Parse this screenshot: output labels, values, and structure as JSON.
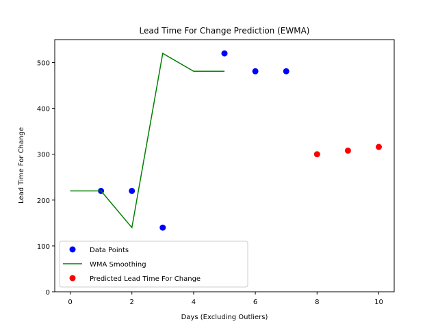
{
  "chart_data": {
    "type": "scatter",
    "title": "Lead Time For Change Prediction (EWMA)",
    "xlabel": "Days (Excluding Outliers)",
    "ylabel": "Lead Time For Change",
    "xlim": [
      -0.5,
      10.5
    ],
    "ylim": [
      0,
      550
    ],
    "xticks": [
      0,
      2,
      4,
      6,
      8,
      10
    ],
    "yticks": [
      0,
      100,
      200,
      300,
      400,
      500
    ],
    "grid": false,
    "legend_position": "lower-left",
    "series": [
      {
        "name": "Data Points",
        "kind": "scatter",
        "color": "#0000ff",
        "x": [
          1,
          2,
          3,
          5,
          6,
          7
        ],
        "y": [
          220,
          220,
          140,
          520,
          481,
          481
        ]
      },
      {
        "name": "WMA Smoothing",
        "kind": "line",
        "color": "#008000",
        "x": [
          0,
          1,
          2,
          3,
          4,
          5
        ],
        "y": [
          220,
          220,
          140,
          520,
          481,
          481
        ]
      },
      {
        "name": "Predicted Lead Time For Change",
        "kind": "scatter",
        "color": "#ff0000",
        "x": [
          8,
          9,
          10
        ],
        "y": [
          300,
          308,
          316
        ]
      }
    ]
  }
}
